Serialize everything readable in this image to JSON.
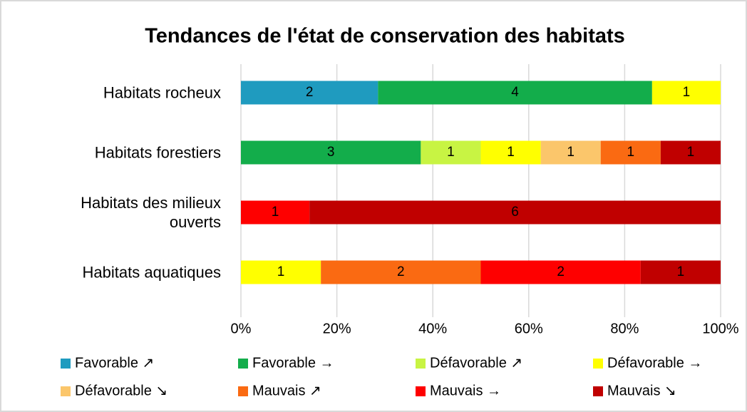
{
  "chart_data": {
    "type": "bar",
    "orientation": "horizontal",
    "stacking": "percent",
    "title": "Tendances de l'état de conservation des habitats",
    "categories": [
      "Habitats rocheux",
      "Habitats forestiers",
      "Habitats des milieux ouverts",
      "Habitats aquatiques"
    ],
    "series": [
      {
        "name": "Favorable ↗",
        "color": "#1f9bbf",
        "values": [
          2,
          null,
          null,
          null
        ]
      },
      {
        "name": "Favorable →",
        "color": "#13ad4b",
        "values": [
          4,
          3,
          null,
          null
        ]
      },
      {
        "name": "Défavorable ↗",
        "color": "#c8f443",
        "values": [
          null,
          1,
          null,
          null
        ]
      },
      {
        "name": "Défavorable →",
        "color": "#ffff00",
        "values": [
          1,
          1,
          null,
          1
        ]
      },
      {
        "name": "Défavorable ↘",
        "color": "#fbc66b",
        "values": [
          null,
          1,
          null,
          null
        ]
      },
      {
        "name": "Mauvais ↗",
        "color": "#fa6a12",
        "values": [
          null,
          1,
          null,
          2
        ]
      },
      {
        "name": "Mauvais →",
        "color": "#fe0000",
        "values": [
          null,
          null,
          1,
          2
        ]
      },
      {
        "name": "Mauvais ↘",
        "color": "#c00000",
        "values": [
          null,
          1,
          6,
          1
        ]
      }
    ],
    "xlim": [
      0,
      100
    ],
    "xticks": [
      {
        "value": 0,
        "label": "0%"
      },
      {
        "value": 20,
        "label": "20%"
      },
      {
        "value": 40,
        "label": "40%"
      },
      {
        "value": 60,
        "label": "60%"
      },
      {
        "value": 80,
        "label": "80%"
      },
      {
        "value": 100,
        "label": "100%"
      }
    ],
    "grid": true,
    "legend": "bottom"
  }
}
